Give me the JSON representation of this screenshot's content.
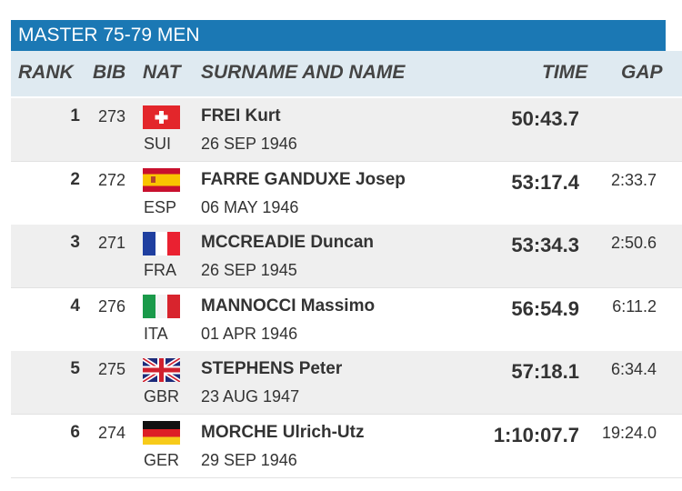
{
  "header": {
    "title": "MASTER 75-79 MEN"
  },
  "table": {
    "columns": {
      "rank": "RANK",
      "bib": "BIB",
      "nat": "NAT",
      "name": "SURNAME AND NAME",
      "time": "TIME",
      "gap": "GAP"
    },
    "rows": [
      {
        "rank": "1",
        "bib": "273",
        "nat": "SUI",
        "name": "FREI Kurt",
        "dob": "26 SEP 1946",
        "time": "50:43.7"
      },
      {
        "rank": "2",
        "bib": "272",
        "nat": "ESP",
        "name": "FARRE GANDUXE Josep",
        "dob": "06 MAY 1946",
        "time": "53:17.4",
        "gap": "2:33.7"
      },
      {
        "rank": "3",
        "bib": "271",
        "nat": "FRA",
        "name": "MCCREADIE Duncan",
        "dob": "26 SEP 1945",
        "time": "53:34.3",
        "gap": "2:50.6"
      },
      {
        "rank": "4",
        "bib": "276",
        "nat": "ITA",
        "name": "MANNOCCI Massimo",
        "dob": "01 APR 1946",
        "time": "56:54.9",
        "gap": "6:11.2"
      },
      {
        "rank": "5",
        "bib": "275",
        "nat": "GBR",
        "name": "STEPHENS Peter",
        "dob": "23 AUG 1947",
        "time": "57:18.1",
        "gap": "6:34.4"
      },
      {
        "rank": "6",
        "bib": "274",
        "nat": "GER",
        "name": "MORCHE Ulrich-Utz",
        "dob": "29 SEP 1946",
        "time": "1:10:07.7",
        "gap": "19:24.0"
      }
    ]
  }
}
